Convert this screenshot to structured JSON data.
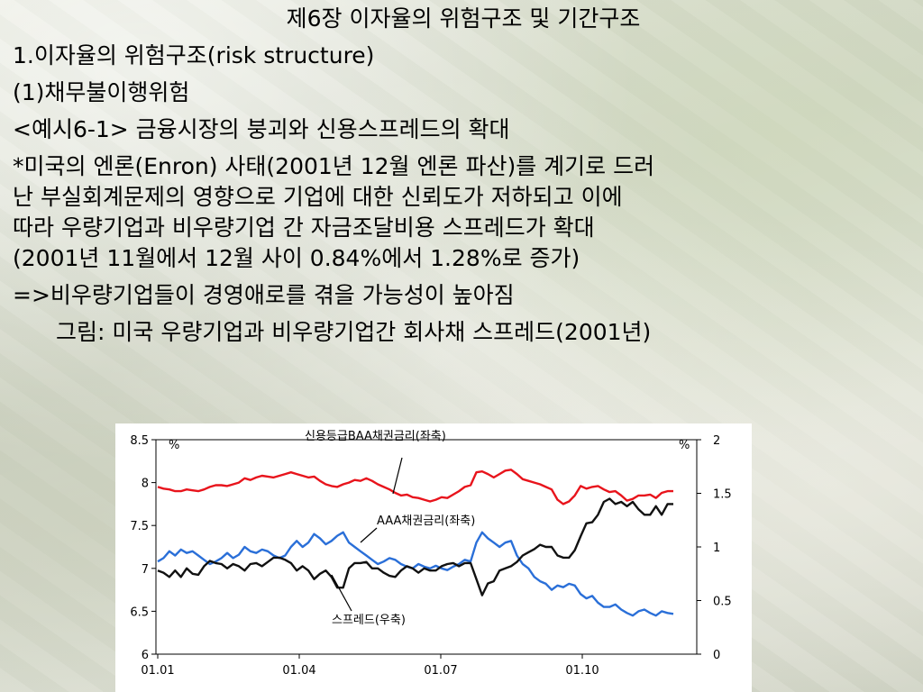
{
  "slide": {
    "title": "제6장 이자율의 위험구조 및 기간구조",
    "section": "1.이자율의 위험구조(risk structure)",
    "subsection": "(1)채무불이행위험",
    "example": "<예시6-1> 금융시장의 붕괴와 신용스프레드의 확대",
    "body_lines": [
      "*미국의 엔론(Enron) 사태(2001년 12월 엔론 파산)를 계기로 드러",
      "난 부실회계문제의 영향으로 기업에 대한 신뢰도가 저하되고 이에",
      "따라 우량기업과 비우량기업 간 자금조달비용 스프레드가 확대",
      "(2001년 11월에서 12월 사이 0.84%에서 1.28%로 증가)"
    ],
    "conclusion": "=>비우량기업들이 경영애로를 겪을 가능성이 높아짐",
    "figure_caption": "그림: 미국 우량기업과 비우량기업간 회사채 스프레드(2001년)"
  },
  "chart_data": {
    "type": "line",
    "x_ticks": [
      "01.01",
      "01.04",
      "01.07",
      "01.10"
    ],
    "y_left": {
      "unit_label": "%",
      "ticks": [
        "8.5",
        "8",
        "7.5",
        "7",
        "6.5",
        "6"
      ],
      "range": [
        6,
        8.5
      ]
    },
    "y_right": {
      "unit_label": "%",
      "ticks": [
        "2",
        "1.5",
        "1",
        "0.5",
        "0"
      ],
      "range": [
        0,
        2
      ]
    },
    "annotations": {
      "baa": "신용등급BAA채권금리(좌축)",
      "aaa": "AAA채권금리(좌축)",
      "spread": "스프레드(우축)"
    },
    "series": [
      {
        "color": "#e8141c",
        "axis": "left",
        "values": [
          7.95,
          7.93,
          7.92,
          7.9,
          7.9,
          7.92,
          7.91,
          7.9,
          7.92,
          7.95,
          7.97,
          7.97,
          7.96,
          7.98,
          8.0,
          8.05,
          8.03,
          8.06,
          8.08,
          8.07,
          8.06,
          8.08,
          8.1,
          8.12,
          8.1,
          8.08,
          8.06,
          8.07,
          8.02,
          7.98,
          7.96,
          7.95,
          7.98,
          8.0,
          8.03,
          8.02,
          8.05,
          8.02,
          7.98,
          7.95,
          7.92,
          7.88,
          7.85,
          7.86,
          7.83,
          7.82,
          7.8,
          7.78,
          7.8,
          7.83,
          7.82,
          7.86,
          7.9,
          7.95,
          7.97,
          8.12,
          8.13,
          8.1,
          8.06,
          8.1,
          8.14,
          8.15,
          8.1,
          8.04,
          8.02,
          8.0,
          7.98,
          7.95,
          7.92,
          7.8,
          7.75,
          7.78,
          7.85,
          7.96,
          7.93,
          7.95,
          7.96,
          7.92,
          7.89,
          7.9,
          7.85,
          7.79,
          7.81,
          7.85,
          7.85,
          7.86,
          7.82,
          7.88,
          7.9,
          7.9
        ]
      },
      {
        "color": "#2a6fd8",
        "axis": "left",
        "values": [
          7.08,
          7.12,
          7.2,
          7.15,
          7.22,
          7.18,
          7.2,
          7.15,
          7.1,
          7.05,
          7.08,
          7.12,
          7.18,
          7.12,
          7.16,
          7.25,
          7.2,
          7.18,
          7.22,
          7.2,
          7.15,
          7.12,
          7.15,
          7.25,
          7.32,
          7.25,
          7.3,
          7.4,
          7.35,
          7.28,
          7.32,
          7.38,
          7.42,
          7.3,
          7.25,
          7.2,
          7.15,
          7.1,
          7.05,
          7.08,
          7.12,
          7.1,
          7.05,
          7.02,
          7.0,
          7.05,
          7.02,
          7.0,
          7.03,
          7.0,
          6.98,
          7.02,
          7.05,
          7.1,
          7.08,
          7.3,
          7.42,
          7.35,
          7.3,
          7.25,
          7.3,
          7.32,
          7.15,
          7.05,
          7.0,
          6.9,
          6.85,
          6.82,
          6.75,
          6.8,
          6.78,
          6.82,
          6.8,
          6.7,
          6.65,
          6.68,
          6.6,
          6.55,
          6.55,
          6.58,
          6.52,
          6.48,
          6.45,
          6.5,
          6.52,
          6.48,
          6.45,
          6.5,
          6.48,
          6.47
        ]
      },
      {
        "color": "#111111",
        "axis": "right",
        "values": [
          0.78,
          0.76,
          0.72,
          0.78,
          0.72,
          0.8,
          0.75,
          0.74,
          0.82,
          0.87,
          0.85,
          0.84,
          0.8,
          0.84,
          0.82,
          0.78,
          0.84,
          0.85,
          0.82,
          0.86,
          0.9,
          0.9,
          0.88,
          0.85,
          0.78,
          0.82,
          0.78,
          0.7,
          0.75,
          0.78,
          0.72,
          0.62,
          0.62,
          0.8,
          0.85,
          0.85,
          0.86,
          0.8,
          0.8,
          0.76,
          0.73,
          0.72,
          0.78,
          0.82,
          0.8,
          0.76,
          0.8,
          0.78,
          0.78,
          0.82,
          0.84,
          0.85,
          0.82,
          0.85,
          0.85,
          0.7,
          0.55,
          0.66,
          0.68,
          0.78,
          0.8,
          0.82,
          0.86,
          0.92,
          0.95,
          0.98,
          1.02,
          1.0,
          1.0,
          0.92,
          0.9,
          0.9,
          0.97,
          1.1,
          1.22,
          1.23,
          1.3,
          1.42,
          1.45,
          1.4,
          1.42,
          1.38,
          1.42,
          1.35,
          1.3,
          1.3,
          1.38,
          1.3,
          1.4,
          1.4
        ]
      }
    ]
  }
}
